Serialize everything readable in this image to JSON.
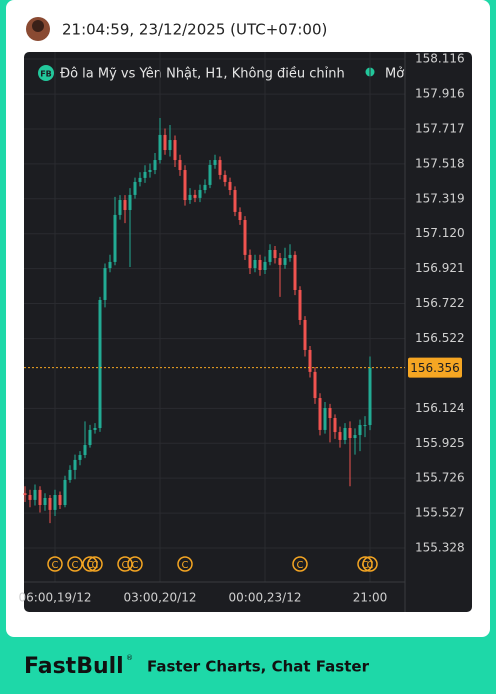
{
  "header": {
    "timestamp": "21:04:59, 23/12/2025 (UTC+07:00)"
  },
  "footer": {
    "brand": "FastBull",
    "mark": "®",
    "tagline": "Faster Charts, Chat Faster"
  },
  "chart_data": {
    "type": "candlestick",
    "title": "Đô la Mỹ vs Yên Nhật, H1, Không điều chỉnh",
    "badge": "FB",
    "status": "Mở",
    "categories": [
      null,
      null,
      null,
      null,
      null,
      null,
      "06:00,19/12",
      null,
      null,
      null,
      null,
      null,
      null,
      null,
      null,
      null,
      null,
      null,
      null,
      null,
      null,
      null,
      null,
      null,
      null,
      null,
      null,
      "03:00,20/12",
      null,
      null,
      null,
      null,
      null,
      null,
      null,
      null,
      null,
      null,
      null,
      null,
      null,
      null,
      null,
      null,
      null,
      null,
      null,
      null,
      "00:00,23/12",
      null,
      null,
      null,
      null,
      null,
      null,
      null,
      null,
      null,
      null,
      null,
      null,
      null,
      null,
      null,
      null,
      null,
      null,
      null,
      null,
      "21:00"
    ],
    "open": [
      155.64,
      155.63,
      155.602,
      155.659,
      155.573,
      155.613,
      155.545,
      155.63,
      155.573,
      155.716,
      155.773,
      155.83,
      155.858,
      155.915,
      156.001,
      156.012,
      156.742,
      156.924,
      156.959,
      157.227,
      157.312,
      157.255,
      157.341,
      157.415,
      157.438,
      157.472,
      157.483,
      157.54,
      157.683,
      157.597,
      157.654,
      157.54,
      157.483,
      157.312,
      157.341,
      157.324,
      157.369,
      157.398,
      157.512,
      157.54,
      157.455,
      157.415,
      157.369,
      157.244,
      157.198,
      156.999,
      156.924,
      156.97,
      156.913,
      156.959,
      157.027,
      156.981,
      156.942,
      156.981,
      156.999,
      156.799,
      156.628,
      156.457,
      156.332,
      156.183,
      156.001,
      156.126,
      156.069,
      155.989,
      155.944,
      156.012,
      155.955,
      155.972,
      156.029,
      156.029
    ],
    "high": [
      155.68,
      155.66,
      155.69,
      155.68,
      155.64,
      155.63,
      155.66,
      155.65,
      155.74,
      155.8,
      155.86,
      155.88,
      156.05,
      156.03,
      156.04,
      156.76,
      156.95,
      157.0,
      157.33,
      157.34,
      157.34,
      157.38,
      157.44,
      157.47,
      157.51,
      157.52,
      157.58,
      157.78,
      157.72,
      157.74,
      157.68,
      157.57,
      157.51,
      157.38,
      157.37,
      157.4,
      157.43,
      157.54,
      157.57,
      157.56,
      157.48,
      157.44,
      157.39,
      157.27,
      157.22,
      157.03,
      157.0,
      157.0,
      156.99,
      157.06,
      157.05,
      157.01,
      157.04,
      157.06,
      157.02,
      156.82,
      156.65,
      156.48,
      156.36,
      156.21,
      156.16,
      156.15,
      156.09,
      156.02,
      156.04,
      156.05,
      156.01,
      156.06,
      156.08,
      156.42
    ],
    "low": [
      155.59,
      155.56,
      155.57,
      155.53,
      155.54,
      155.47,
      155.51,
      155.55,
      155.56,
      155.7,
      155.72,
      155.8,
      155.84,
      155.9,
      155.98,
      155.99,
      156.7,
      156.9,
      156.94,
      157.2,
      157.18,
      156.93,
      157.32,
      157.39,
      157.41,
      157.44,
      157.46,
      157.52,
      157.57,
      157.56,
      157.5,
      157.45,
      157.28,
      157.29,
      157.3,
      157.3,
      157.35,
      157.38,
      157.49,
      157.43,
      157.39,
      157.34,
      157.22,
      157.17,
      156.97,
      156.89,
      156.9,
      156.88,
      156.89,
      156.94,
      156.95,
      156.76,
      156.92,
      156.96,
      156.77,
      156.6,
      156.42,
      156.3,
      156.15,
      155.97,
      155.98,
      155.93,
      155.95,
      155.9,
      155.92,
      155.68,
      155.86,
      155.88,
      155.96,
      156.0
    ],
    "close": [
      155.63,
      155.602,
      155.659,
      155.573,
      155.613,
      155.545,
      155.63,
      155.573,
      155.716,
      155.773,
      155.83,
      155.858,
      155.915,
      156.001,
      156.012,
      156.742,
      156.924,
      156.959,
      157.227,
      157.312,
      157.255,
      157.341,
      157.415,
      157.438,
      157.472,
      157.483,
      157.54,
      157.683,
      157.597,
      157.654,
      157.54,
      157.483,
      157.312,
      157.341,
      157.324,
      157.369,
      157.398,
      157.512,
      157.54,
      157.455,
      157.415,
      157.369,
      157.244,
      157.198,
      156.999,
      156.924,
      156.97,
      156.913,
      156.959,
      157.027,
      156.981,
      156.942,
      156.981,
      156.999,
      156.799,
      156.628,
      156.457,
      156.332,
      156.183,
      156.001,
      156.126,
      156.069,
      155.989,
      155.944,
      156.012,
      155.955,
      155.972,
      156.029,
      156.029,
      156.356
    ],
    "up_color": "#22ab94",
    "down_color": "#f05350",
    "price_color": "#f5a623",
    "ylim": [
      155.134,
      158.156
    ],
    "yticks": [
      158.116,
      157.916,
      157.717,
      157.518,
      157.319,
      {
        "value": 157.12,
        "label": "157.120"
      },
      156.921,
      156.722,
      156.522,
      156.124,
      155.925,
      155.726,
      155.527,
      155.328
    ],
    "grid": true,
    "events": {
      "label": "C",
      "indices": [
        6,
        10,
        13,
        14,
        20,
        22,
        32,
        55,
        68,
        69
      ]
    }
  }
}
